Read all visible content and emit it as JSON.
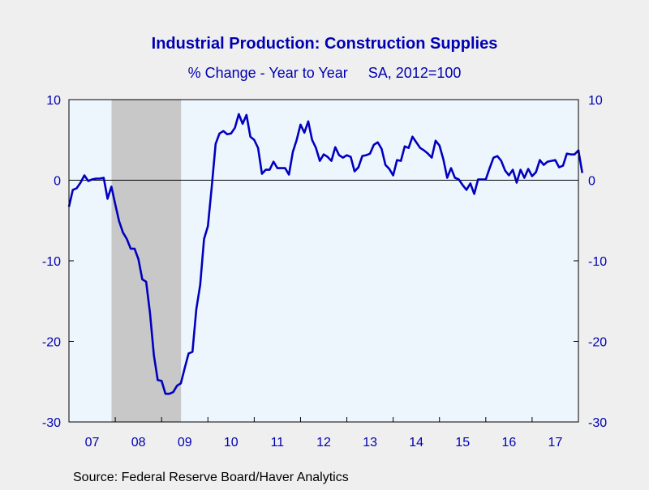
{
  "colors": {
    "background": "#efefef",
    "plot_background": "#eef6fd",
    "recession_shade": "#c8c8c8",
    "series_line": "#0000bf",
    "text": "#0000b3"
  },
  "source_note": "Source:  Federal Reserve Board/Haver Analytics",
  "chart_data": {
    "type": "line",
    "title": "Industrial Production: Construction Supplies",
    "subtitle": "% Change - Year to Year     SA, 2012=100",
    "xlabel": "",
    "ylabel": "",
    "ylim": [
      -30,
      10
    ],
    "yticks": [
      10,
      0,
      -10,
      -20,
      -30
    ],
    "y_axis_both_sides": true,
    "xlim": [
      2007.0,
      2018.0
    ],
    "xtick_labels": [
      {
        "label": "07",
        "x": 2007.5
      },
      {
        "label": "08",
        "x": 2008.5
      },
      {
        "label": "09",
        "x": 2009.5
      },
      {
        "label": "10",
        "x": 2010.5
      },
      {
        "label": "11",
        "x": 2011.5
      },
      {
        "label": "12",
        "x": 2012.5
      },
      {
        "label": "13",
        "x": 2013.5
      },
      {
        "label": "14",
        "x": 2014.5
      },
      {
        "label": "15",
        "x": 2015.5
      },
      {
        "label": "16",
        "x": 2016.5
      },
      {
        "label": "17",
        "x": 2017.5
      }
    ],
    "zero_line": true,
    "grid": false,
    "recession": [
      2007.92,
      2009.42
    ],
    "x_frequency": "monthly",
    "x_start": "2007-01",
    "series": [
      {
        "values": [
          -3.3,
          -1.2,
          -1.0,
          -0.3,
          0.6,
          -0.1,
          0.1,
          0.2,
          0.2,
          0.3,
          -2.3,
          -0.8,
          -3.0,
          -5.1,
          -6.5,
          -7.3,
          -8.5,
          -8.5,
          -9.8,
          -12.3,
          -12.6,
          -16.5,
          -21.7,
          -24.8,
          -24.9,
          -26.5,
          -26.5,
          -26.3,
          -25.5,
          -25.2,
          -23.3,
          -21.5,
          -21.3,
          -16.0,
          -13.0,
          -7.3,
          -5.7,
          -0.8,
          4.5,
          5.8,
          6.1,
          5.7,
          5.8,
          6.5,
          8.2,
          7.0,
          8.1,
          5.4,
          5.0,
          4.0,
          0.8,
          1.3,
          1.3,
          2.3,
          1.5,
          1.5,
          1.5,
          0.7,
          3.5,
          5.0,
          6.9,
          5.9,
          7.3,
          5.0,
          4.0,
          2.4,
          3.2,
          2.9,
          2.4,
          4.1,
          3.1,
          2.8,
          3.1,
          2.9,
          1.1,
          1.6,
          3.0,
          3.1,
          3.3,
          4.4,
          4.7,
          3.9,
          1.9,
          1.4,
          0.6,
          2.5,
          2.4,
          4.2,
          4.0,
          5.4,
          4.7,
          4.0,
          3.7,
          3.3,
          2.8,
          4.9,
          4.3,
          2.6,
          0.3,
          1.5,
          0.3,
          0.1,
          -0.6,
          -1.2,
          -0.4,
          -1.7,
          0.1,
          0.1,
          0.1,
          1.5,
          2.8,
          3.0,
          2.4,
          1.2,
          0.6,
          1.3,
          -0.3,
          1.3,
          0.3,
          1.4,
          0.5,
          1.0,
          2.5,
          1.9,
          2.3,
          2.4,
          2.5,
          1.6,
          1.8,
          3.3,
          3.2,
          3.2,
          3.7,
          0.9
        ]
      }
    ]
  }
}
